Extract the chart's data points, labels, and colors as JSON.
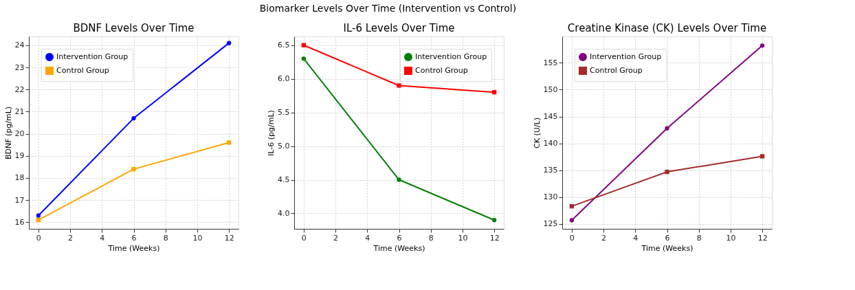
{
  "chart_data": [
    {
      "type": "line",
      "title": "BDNF Levels Over Time",
      "xlabel": "Time (Weeks)",
      "ylabel": "BDNF (pg/mL)",
      "annotations": [
        "Biomarker Levels Over Time (Intervention vs Control)"
      ],
      "x": [
        0,
        6,
        12
      ],
      "xlim": [
        -0.6,
        12.6
      ],
      "xticks": [
        0,
        2,
        4,
        6,
        8,
        10,
        12
      ],
      "ylim": [
        15.7,
        24.4
      ],
      "yticks": [
        16,
        17,
        18,
        19,
        20,
        21,
        22,
        23,
        24
      ],
      "grid": true,
      "legend": "top left",
      "series": [
        {
          "name": "Intervention Group",
          "color": "#0000ff",
          "marker": "circle",
          "values": [
            16.3,
            20.7,
            24.1
          ]
        },
        {
          "name": "Control Group",
          "color": "#ffa500",
          "marker": "square",
          "values": [
            16.1,
            18.4,
            19.6
          ]
        }
      ]
    },
    {
      "type": "line",
      "title": "IL-6 Levels Over Time",
      "xlabel": "Time (Weeks)",
      "ylabel": "IL-6 (pg/mL)",
      "x": [
        0,
        6,
        12
      ],
      "xlim": [
        -0.6,
        12.6
      ],
      "xticks": [
        0,
        2,
        4,
        6,
        8,
        10,
        12
      ],
      "ylim": [
        3.77,
        6.63
      ],
      "yticks": [
        {
          "value": 4,
          "label": "4.0"
        },
        4.5,
        {
          "value": 5,
          "label": "5.0"
        },
        5.5,
        {
          "value": 6,
          "label": "6.0"
        },
        6.5
      ],
      "grid": true,
      "legend": "top right",
      "series": [
        {
          "name": "Intervention Group",
          "color": "#008000",
          "marker": "circle",
          "values": [
            6.3,
            4.5,
            3.9
          ]
        },
        {
          "name": "Control Group",
          "color": "#ff0000",
          "marker": "square",
          "values": [
            6.5,
            5.9,
            5.8
          ]
        }
      ]
    },
    {
      "type": "line",
      "title": "Creatine Kinase (CK) Levels Over Time",
      "xlabel": "Time (Weeks)",
      "ylabel": "CK (U/L)",
      "x": [
        0,
        6,
        12
      ],
      "xlim": [
        -0.6,
        12.6
      ],
      "xticks": [
        0,
        2,
        4,
        6,
        8,
        10,
        12
      ],
      "ylim": [
        124.1,
        159.9
      ],
      "yticks": [
        125,
        130,
        135,
        140,
        145,
        150,
        155
      ],
      "grid": true,
      "legend": "top left",
      "series": [
        {
          "name": "Intervention Group",
          "color": "#800080",
          "marker": "circle",
          "values": [
            125.7,
            142.8,
            158.2
          ]
        },
        {
          "name": "Control Group",
          "color": "#a52a2a",
          "marker": "square",
          "values": [
            128.3,
            134.7,
            137.6
          ]
        }
      ]
    }
  ]
}
